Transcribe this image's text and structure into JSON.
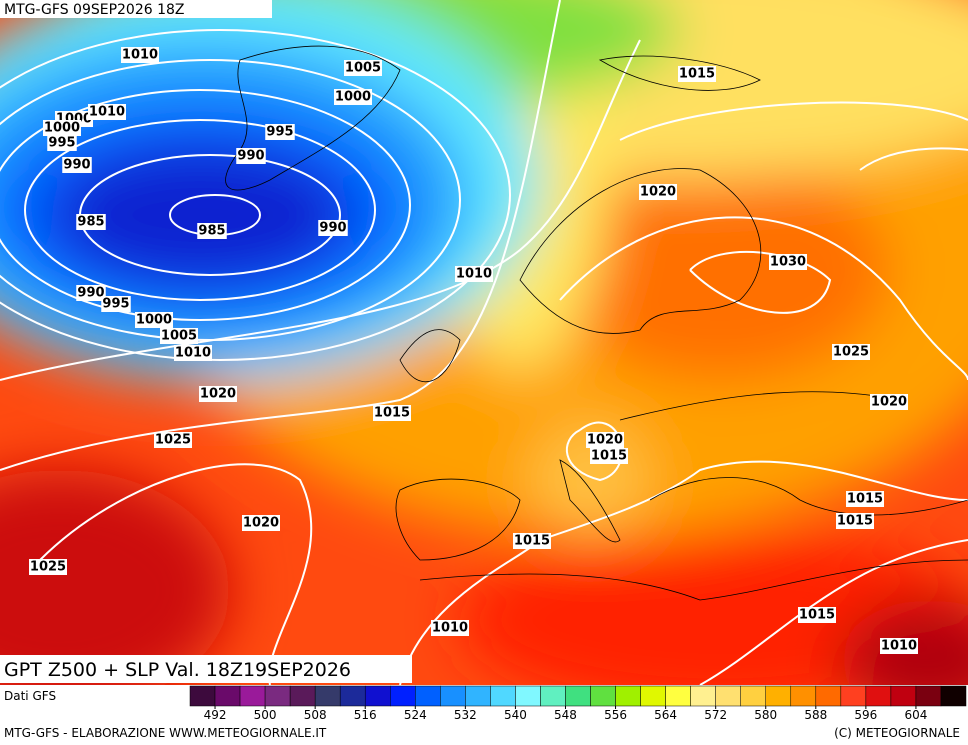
{
  "header": {
    "run": "MTG-GFS 09SEP2026 18Z",
    "product": "GPT Z500 + SLP Val. 18Z19SEP2026"
  },
  "isobar_labels": [
    1010,
    1005,
    1000,
    1000,
    1010,
    1000,
    995,
    995,
    990,
    990,
    985,
    985,
    990,
    990,
    995,
    1000,
    1005,
    1010,
    1010,
    1015,
    1020,
    1030,
    1025,
    1020,
    1020,
    1015,
    1025,
    1020,
    1015,
    1015,
    1015,
    1020,
    1015,
    1025,
    1015,
    1010,
    1010
  ],
  "colorbar": {
    "source": "Dati GFS",
    "range": [
      488,
      612
    ],
    "ticks": [
      492,
      500,
      508,
      516,
      524,
      532,
      540,
      548,
      556,
      564,
      572,
      580,
      588,
      596,
      604
    ],
    "colors": [
      "#3d0a3d",
      "#6a0a6a",
      "#9a1a9a",
      "#7a2a80",
      "#5a1a5a",
      "#353a6a",
      "#1c2a9a",
      "#1010d0",
      "#0020ff",
      "#0060ff",
      "#1890ff",
      "#30b4ff",
      "#50d8ff",
      "#80f8ff",
      "#60f0c0",
      "#40e080",
      "#60e040",
      "#a0f000",
      "#e0f800",
      "#ffff40",
      "#fff090",
      "#ffe070",
      "#ffd040",
      "#ffb000",
      "#ff9000",
      "#ff6a00",
      "#ff4020",
      "#e01010",
      "#c00010",
      "#7a0010",
      "#100000"
    ]
  },
  "footer": {
    "left": "MTG-GFS - ELABORAZIONE WWW.METEOGIORNALE.IT",
    "right": "(C) METEOGIORNALE"
  }
}
